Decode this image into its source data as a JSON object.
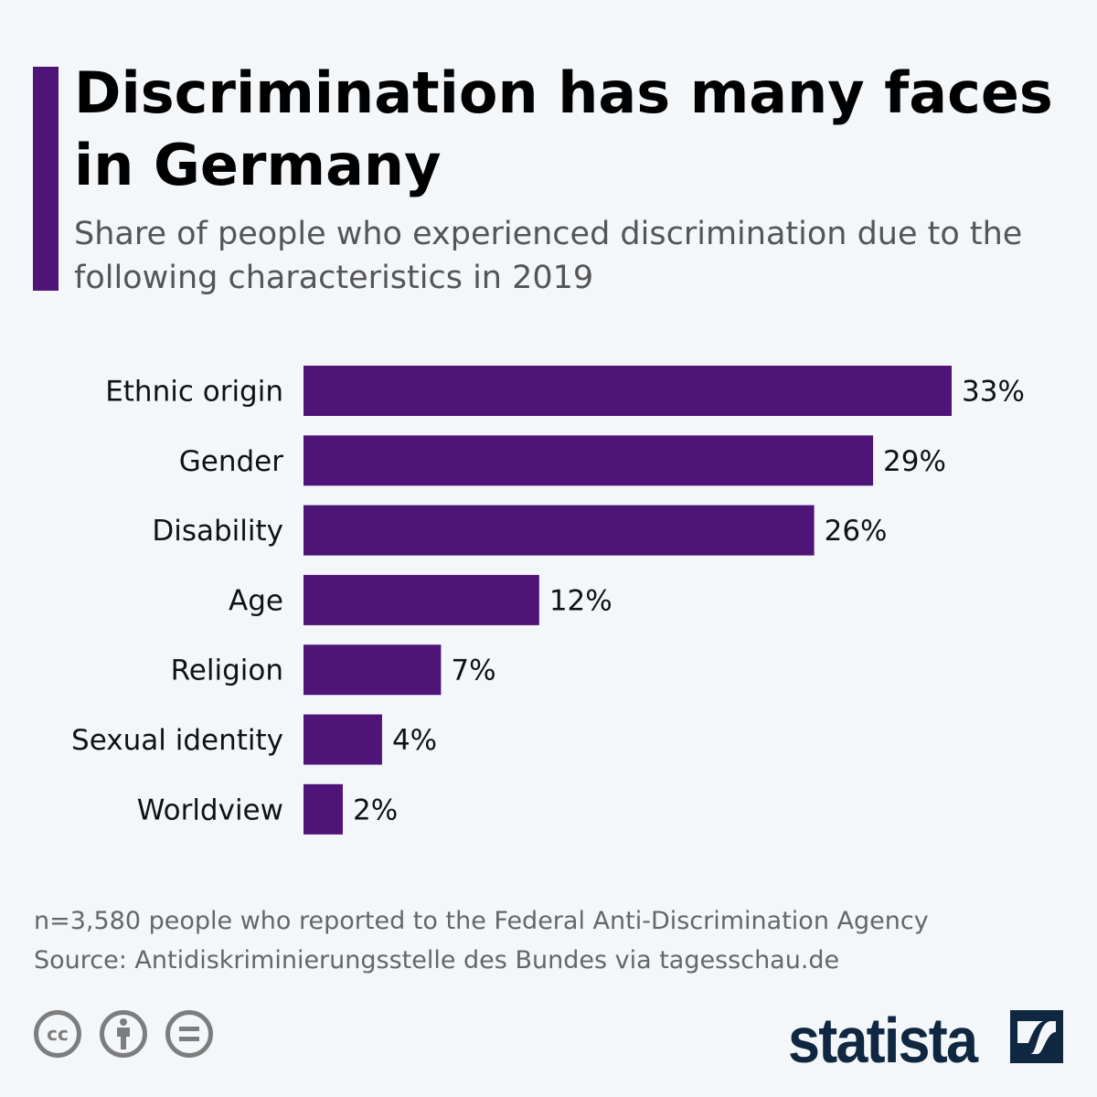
{
  "header": {
    "title": "Discrimination has many faces in Germany",
    "subtitle": "Share of people who experienced discrimination due to the following characteristics in 2019",
    "accent_color": "#4e1478"
  },
  "chart_data": {
    "type": "bar",
    "orientation": "horizontal",
    "title": "Discrimination has many faces in Germany",
    "categories": [
      "Ethnic origin",
      "Gender",
      "Disability",
      "Age",
      "Religion",
      "Sexual identity",
      "Worldview"
    ],
    "values": [
      33,
      29,
      26,
      12,
      7,
      4,
      2
    ],
    "labels": [
      "33%",
      "29%",
      "26%",
      "12%",
      "7%",
      "4%",
      "2%"
    ],
    "unit": "%",
    "bar_color": "#4e1478",
    "grid": false,
    "xlim": [
      0,
      33
    ]
  },
  "footer": {
    "note": "n=3,580 people who reported to the Federal Anti-Discrimination Agency",
    "source": "Source: Antidiskriminierungsstelle des Bundes via tagesschau.de",
    "license_icons": [
      "cc-icon",
      "by-attribution-icon",
      "no-derivatives-icon"
    ],
    "cc_text": "cc",
    "brand": "statista"
  }
}
